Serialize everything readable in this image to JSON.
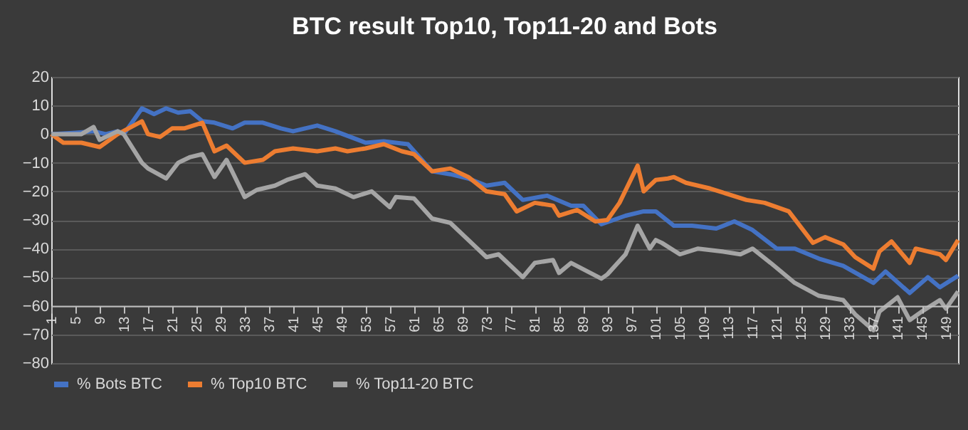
{
  "chart_data": {
    "type": "line",
    "title": "BTC result Top10, Top11-20 and Bots",
    "xlim": [
      1,
      151
    ],
    "xticks": [
      1,
      5,
      9,
      13,
      17,
      21,
      25,
      29,
      33,
      37,
      41,
      45,
      49,
      53,
      57,
      61,
      65,
      69,
      73,
      77,
      81,
      85,
      89,
      93,
      97,
      101,
      105,
      109,
      113,
      117,
      121,
      125,
      129,
      133,
      137,
      141,
      145,
      149
    ],
    "ylim": [
      -80,
      20
    ],
    "yticks": [
      -80,
      -70,
      -60,
      -50,
      -40,
      -30,
      -20,
      -10,
      0,
      10,
      20
    ],
    "grid": "y",
    "legend": "bottom",
    "marker": "none",
    "line_style": "solid",
    "series": [
      {
        "name": "% Bots BTC",
        "color": "#4472c4",
        "x": [
          1,
          5,
          8,
          10,
          12,
          13,
          16,
          18,
          20,
          22,
          24,
          26,
          28,
          31,
          33,
          36,
          39,
          41,
          43,
          45,
          48,
          53,
          56,
          60,
          64,
          67,
          70,
          73,
          76,
          79,
          83,
          87,
          89,
          92,
          96,
          99,
          101,
          104,
          107,
          111,
          114,
          117,
          121,
          124,
          128,
          132,
          137,
          139,
          143,
          146,
          148,
          151
        ],
        "values": [
          0,
          0.5,
          1,
          0,
          1,
          0,
          9,
          7,
          9,
          7.5,
          8,
          4.5,
          4,
          2,
          4,
          4,
          2,
          1,
          2,
          3,
          1,
          -3,
          -2.5,
          -3.5,
          -13,
          -14,
          -15.5,
          -18,
          -17,
          -23,
          -21.5,
          -25,
          -25,
          -31.5,
          -28.5,
          -27,
          -27,
          -32,
          -32,
          -33,
          -30.5,
          -33.5,
          -40,
          -40,
          -43.5,
          -46,
          -52,
          -48,
          -55.5,
          -50,
          -53.5,
          -49.5
        ]
      },
      {
        "name": "% Top10 BTC",
        "color": "#ed7d31",
        "x": [
          1,
          3,
          6,
          9,
          12,
          16,
          17,
          19,
          21,
          23,
          26,
          28,
          30,
          33,
          36,
          38,
          41,
          45,
          48,
          50,
          53,
          56,
          59,
          61,
          64,
          67,
          70,
          73,
          76,
          78,
          81,
          84,
          85,
          88,
          91,
          93,
          95,
          98,
          99,
          101,
          103,
          104,
          106,
          110,
          113,
          116,
          119,
          123,
          127,
          129,
          132,
          134,
          137,
          138,
          140,
          143,
          144,
          148,
          149,
          151
        ],
        "values": [
          0,
          -3,
          -3,
          -4.5,
          0,
          4.5,
          0,
          -1,
          2,
          2,
          4,
          -6,
          -4,
          -10,
          -9,
          -6,
          -5,
          -6,
          -5,
          -6,
          -5,
          -3.5,
          -6,
          -7,
          -13,
          -12,
          -15,
          -20,
          -21,
          -27,
          -24,
          -25,
          -28.5,
          -26.5,
          -30.5,
          -30,
          -24,
          -11,
          -20,
          -16,
          -15.5,
          -15,
          -17,
          -19,
          -21,
          -23,
          -24,
          -27,
          -38,
          -36,
          -38.5,
          -43,
          -47,
          -41,
          -37.5,
          -45,
          -40,
          -42,
          -44,
          -37
        ]
      },
      {
        "name": "% Top11-20 BTC",
        "color": "#a5a5a5",
        "x": [
          1,
          6,
          8,
          9,
          12,
          13,
          16,
          17,
          20,
          22,
          24,
          26,
          28,
          30,
          33,
          35,
          38,
          40,
          43,
          45,
          48,
          51,
          54,
          57,
          58,
          61,
          64,
          67,
          71,
          73,
          75,
          79,
          81,
          84,
          85,
          87,
          92,
          93,
          96,
          98,
          100,
          101,
          102,
          105,
          108,
          112,
          115,
          117,
          120,
          124,
          128,
          132,
          134,
          137,
          138,
          141,
          143,
          145,
          148,
          149,
          151
        ],
        "values": [
          0,
          0,
          2.5,
          -2,
          1,
          0,
          -10,
          -12,
          -15.5,
          -10,
          -8,
          -7,
          -15,
          -9,
          -22,
          -19.5,
          -18,
          -16,
          -14,
          -18,
          -19,
          -22,
          -20,
          -25.5,
          -22,
          -22.5,
          -29.5,
          -31,
          -39,
          -43,
          -42,
          -50,
          -45,
          -44,
          -48.5,
          -45,
          -50.5,
          -49,
          -42,
          -32,
          -40,
          -37,
          -38,
          -42,
          -40,
          -41,
          -42,
          -40,
          -45,
          -52,
          -56.5,
          -58,
          -63,
          -68.5,
          -62,
          -57,
          -65,
          -62,
          -58,
          -61,
          -55
        ]
      }
    ]
  }
}
